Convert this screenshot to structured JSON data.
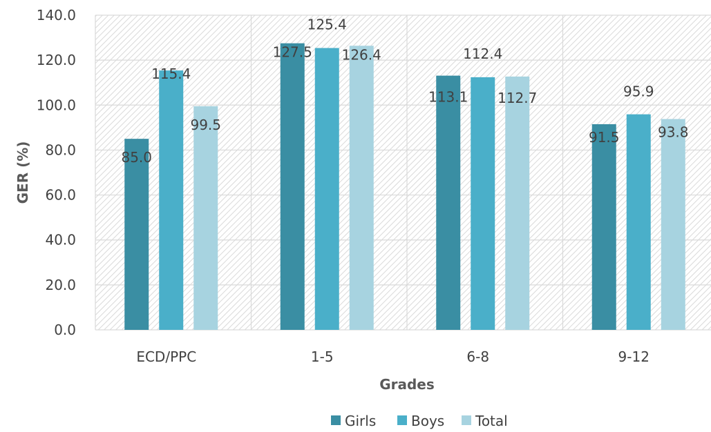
{
  "chart_data": {
    "type": "bar",
    "title": "",
    "xlabel": "Grades",
    "ylabel": "GER (%)",
    "categories": [
      "ECD/PPC",
      "1-5",
      "6-8",
      "9-12"
    ],
    "ylim": [
      0,
      140
    ],
    "yticks": [
      "0.0",
      "20.0",
      "40.0",
      "60.0",
      "80.0",
      "100.0",
      "120.0",
      "140.0"
    ],
    "grid": true,
    "legend_position": "bottom",
    "series": [
      {
        "name": "Girls",
        "color": "#3a8ea3",
        "values": [
          85.0,
          127.5,
          113.1,
          91.5
        ],
        "labels": [
          "85.0",
          "127.5",
          "113.1",
          "91.5"
        ]
      },
      {
        "name": "Boys",
        "color": "#4aafc9",
        "values": [
          115.4,
          125.4,
          112.4,
          95.9
        ],
        "labels": [
          "115.4",
          "125.4",
          "112.4",
          "95.9"
        ]
      },
      {
        "name": "Total",
        "color": "#a7d3e0",
        "values": [
          99.5,
          126.4,
          112.7,
          93.8
        ],
        "labels": [
          "99.5",
          "126.4",
          "112.7",
          "93.8"
        ]
      }
    ]
  }
}
